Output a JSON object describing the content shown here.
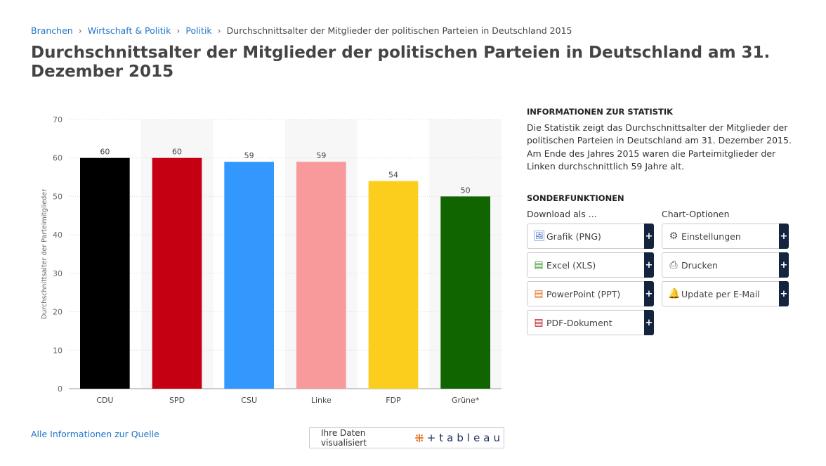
{
  "breadcrumb": [
    "Branchen",
    "Wirtschaft & Politik",
    "Politik",
    "Durchschnittsalter der Mitglieder der politischen Parteien in Deutschland 2015"
  ],
  "title": "Durchschnittsalter der Mitglieder der politischen Parteien in Deutschland am 31. Dezember 2015",
  "info": {
    "heading": "INFORMATIONEN ZUR STATISTIK",
    "text": "Die Statistik zeigt das Durchschnittsalter der Mitglieder der politischen Parteien in Deutschland am 31. Dezember 2015. Am Ende des Jahres 2015 waren die Parteimitglieder der Linken durchschnittlich 59 Jahre alt."
  },
  "sonder": {
    "heading": "SONDERFUNKTIONEN",
    "download_label": "Download als ...",
    "options_label": "Chart-Optionen",
    "downloads": [
      {
        "label": "Grafik (PNG)",
        "icon": "image-file-icon"
      },
      {
        "label": "Excel (XLS)",
        "icon": "excel-file-icon"
      },
      {
        "label": "PowerPoint (PPT)",
        "icon": "ppt-file-icon"
      },
      {
        "label": "PDF-Dokument",
        "icon": "pdf-file-icon"
      }
    ],
    "options": [
      {
        "label": "Einstellungen",
        "icon": "gear-icon"
      },
      {
        "label": "Drucken",
        "icon": "printer-icon"
      },
      {
        "label": "Update per E-Mail",
        "icon": "bell-icon"
      }
    ],
    "plus": "+"
  },
  "source_link": "Alle Informationen zur Quelle",
  "tableau": {
    "text": "Ihre Daten visualisiert",
    "brand": "tableau"
  },
  "chart_data": {
    "type": "bar",
    "categories": [
      "CDU",
      "SPD",
      "CSU",
      "Linke",
      "FDP",
      "Grüne*"
    ],
    "values": [
      60,
      60,
      59,
      59,
      54,
      50
    ],
    "colors": [
      "#000000",
      "#c40012",
      "#3398fe",
      "#f8999c",
      "#fbce1e",
      "#116500"
    ],
    "ylabel": "Durchschnittsalter der Parteimitglieder",
    "xlabel": "",
    "ylim": [
      0,
      70
    ],
    "yticks": [
      0,
      10,
      20,
      30,
      40,
      50,
      60,
      70
    ],
    "grid": true
  }
}
